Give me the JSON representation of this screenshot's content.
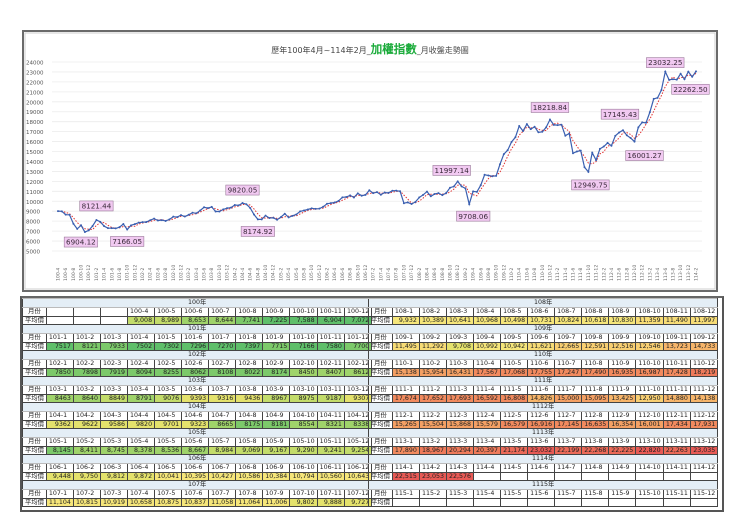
{
  "chart": {
    "title_prefix": "歷年100年4月~114年2月_",
    "title_highlight": "加權指數",
    "title_suffix": "_月收盤走勢圖",
    "highlight_color": "#1aab3a"
  },
  "chart_data": {
    "type": "line",
    "title": "歷年100年4月~114年2月_加權指數_月收盤走勢圖",
    "xlabel": "",
    "ylabel": "",
    "ylim": [
      5000,
      24000
    ],
    "yticks": [
      5000,
      6000,
      7000,
      8000,
      9000,
      10000,
      11000,
      12000,
      13000,
      14000,
      15000,
      16000,
      17000,
      18000,
      19000,
      20000,
      21000,
      22000,
      23000,
      24000
    ],
    "grid": true,
    "legend": "none",
    "x_tick_labels": [
      "100-4",
      "100-6",
      "100-8",
      "100-10",
      "100-12",
      "101-2",
      "101-4",
      "101-6",
      "101-8",
      "101-10",
      "101-12",
      "102-2",
      "102-4",
      "102-6",
      "102-8",
      "102-10",
      "102-12",
      "103-2",
      "103-4",
      "103-6",
      "103-8",
      "103-10",
      "103-12",
      "104-2",
      "104-4",
      "104-6",
      "104-8",
      "104-10",
      "104-12",
      "105-2",
      "105-4",
      "105-6",
      "105-8",
      "105-10",
      "105-12",
      "106-2",
      "106-4",
      "106-6",
      "106-8",
      "106-10",
      "106-12",
      "107-2",
      "107-4",
      "107-6",
      "107-8",
      "107-10",
      "107-12",
      "108-2",
      "108-4",
      "108-6",
      "108-8",
      "108-10",
      "108-12",
      "109-2",
      "109-4",
      "109-6",
      "109-8",
      "109-10",
      "109-12",
      "110-2",
      "110-4",
      "110-6",
      "110-8",
      "110-10",
      "110-12",
      "111-2",
      "111-4",
      "111-6",
      "111-8",
      "111-10",
      "111-12",
      "112-2",
      "112-4",
      "112-6",
      "112-8",
      "112-10",
      "112-12",
      "113-2",
      "113-4",
      "113-6",
      "113-8",
      "113-10",
      "113-12",
      "114-2"
    ],
    "series": [
      {
        "name": "月收盤",
        "color": "#3a5fb0",
        "style": "solid-with-markers"
      },
      {
        "name": "趨勢線",
        "color": "#e03030",
        "style": "dotted"
      }
    ],
    "annotations": [
      {
        "label": "8121.44",
        "x": "101-2",
        "value": 8121.44
      },
      {
        "label": "6904.12",
        "x": "100-11",
        "value": 6904.12
      },
      {
        "label": "7166.05",
        "x": "101-10",
        "value": 7166.05
      },
      {
        "label": "9820.05",
        "x": "104-4",
        "value": 9820.05
      },
      {
        "label": "8174.92",
        "x": "104-8",
        "value": 8174.92
      },
      {
        "label": "11997.14",
        "x": "108-12",
        "value": 11997.14
      },
      {
        "label": "9708.06",
        "x": "109-3",
        "value": 9708.06
      },
      {
        "label": "18218.84",
        "x": "110-12",
        "value": 18218.84
      },
      {
        "label": "12949.75",
        "x": "111-10",
        "value": 12949.75
      },
      {
        "label": "17145.43",
        "x": "112-7",
        "value": 17145.43
      },
      {
        "label": "16001.27",
        "x": "112-10",
        "value": 16001.27
      },
      {
        "label": "23032.25",
        "x": "113-6",
        "value": 23032.25
      },
      {
        "label": "22262.50",
        "x": "113-11",
        "value": 22262.5
      }
    ]
  },
  "table": {
    "month_label": "月份",
    "avg_label": "平均價",
    "left": [
      {
        "year": "100年",
        "months": [
          "",
          "",
          "",
          "100-4",
          "100-5",
          "100-6",
          "100-7",
          "100-8",
          "100-9",
          "100-10",
          "100-11",
          "100-12"
        ],
        "values": [
          "",
          "",
          "",
          "9,008",
          "8,989",
          "8,653",
          "8,644",
          "7,741",
          "7,225",
          "7,588",
          "6,904",
          "7,072"
        ]
      },
      {
        "year": "101年",
        "months": [
          "101-1",
          "101-2",
          "101-3",
          "101-4",
          "101-5",
          "101-6",
          "101-7",
          "101-8",
          "101-9",
          "101-10",
          "101-11",
          "101-12"
        ],
        "values": [
          "7517",
          "8121",
          "7933",
          "7502",
          "7302",
          "7296",
          "7270",
          "7397",
          "7715",
          "7166",
          "7580",
          "7700"
        ]
      },
      {
        "year": "102年",
        "months": [
          "102-1",
          "102-2",
          "102-3",
          "102-4",
          "102-5",
          "102-6",
          "102-7",
          "102-8",
          "102-9",
          "102-10",
          "102-11",
          "102-12"
        ],
        "values": [
          "7850",
          "7898",
          "7919",
          "8094",
          "8255",
          "8062",
          "8108",
          "8022",
          "8174",
          "8450",
          "8407",
          "8612"
        ]
      },
      {
        "year": "103年",
        "months": [
          "103-1",
          "103-2",
          "103-3",
          "103-4",
          "103-5",
          "103-6",
          "103-7",
          "103-8",
          "103-9",
          "103-10",
          "103-11",
          "103-12"
        ],
        "values": [
          "8463",
          "8640",
          "8849",
          "8791",
          "9076",
          "9393",
          "9316",
          "9436",
          "8967",
          "8975",
          "9187",
          "9307"
        ]
      },
      {
        "year": "104年",
        "months": [
          "104-1",
          "104-2",
          "104-3",
          "104-4",
          "104-5",
          "104-6",
          "104-7",
          "104-8",
          "104-9",
          "104-10",
          "104-11",
          "104-12"
        ],
        "values": [
          "9362",
          "9622",
          "9586",
          "9820",
          "9701",
          "9323",
          "8665",
          "8175",
          "8181",
          "8554",
          "8321",
          "8338"
        ]
      },
      {
        "year": "105年",
        "months": [
          "105-1",
          "105-2",
          "105-3",
          "105-4",
          "105-5",
          "105-6",
          "105-7",
          "105-8",
          "105-9",
          "105-10",
          "105-11",
          "105-12"
        ],
        "values": [
          "8,145",
          "8,411",
          "8,745",
          "8,378",
          "8,536",
          "8,667",
          "8,984",
          "9,069",
          "9,167",
          "9,290",
          "9,241",
          "9,254"
        ]
      },
      {
        "year": "106年",
        "months": [
          "106-1",
          "106-2",
          "106-3",
          "106-4",
          "106-5",
          "106-6",
          "106-7",
          "106-8",
          "106-9",
          "106-10",
          "106-11",
          "106-12"
        ],
        "values": [
          "9,448",
          "9,750",
          "9,812",
          "9,872",
          "10,041",
          "10,395",
          "10,427",
          "10,586",
          "10,384",
          "10,794",
          "10,560",
          "10,643"
        ]
      },
      {
        "year": "107年",
        "months": [
          "107-1",
          "107-2",
          "107-3",
          "107-4",
          "107-5",
          "107-6",
          "107-7",
          "107-8",
          "107-9",
          "107-10",
          "107-11",
          "107-12"
        ],
        "values": [
          "11,104",
          "10,815",
          "10,919",
          "10,658",
          "10,875",
          "10,837",
          "11,058",
          "11,064",
          "11,006",
          "9,802",
          "9,888",
          "9,727"
        ]
      }
    ],
    "right": [
      {
        "year": "108年",
        "months": [
          "108-1",
          "108-2",
          "108-3",
          "108-4",
          "108-5",
          "108-6",
          "108-7",
          "108-8",
          "108-9",
          "108-10",
          "108-11",
          "108-12"
        ],
        "values": [
          "9,932",
          "10,389",
          "10,641",
          "10,968",
          "10,498",
          "10,731",
          "10,824",
          "10,618",
          "10,830",
          "11,359",
          "11,490",
          "11,997"
        ]
      },
      {
        "year": "109年",
        "months": [
          "109-1",
          "109-2",
          "109-3",
          "109-4",
          "109-5",
          "109-6",
          "109-7",
          "109-8",
          "109-9",
          "109-10",
          "109-11",
          "109-12"
        ],
        "values": [
          "11,495",
          "11,292",
          "9,708",
          "10,992",
          "10,942",
          "11,621",
          "12,665",
          "12,591",
          "12,516",
          "12,546",
          "13,723",
          "14,733"
        ]
      },
      {
        "year": "110年",
        "months": [
          "110-1",
          "110-2",
          "110-3",
          "110-4",
          "110-5",
          "110-6",
          "110-7",
          "110-8",
          "110-9",
          "110-10",
          "110-11",
          "110-12"
        ],
        "values": [
          "15,138",
          "15,954",
          "16,431",
          "17,567",
          "17,068",
          "17,755",
          "17,247",
          "17,490",
          "16,935",
          "16,987",
          "17,428",
          "18,219"
        ]
      },
      {
        "year": "111年",
        "months": [
          "111-1",
          "111-2",
          "111-3",
          "111-4",
          "111-5",
          "111-6",
          "111-7",
          "111-8",
          "111-9",
          "111-10",
          "111-11",
          "111-12"
        ],
        "values": [
          "17,674",
          "17,652",
          "17,693",
          "16,592",
          "16,808",
          "14,826",
          "15,000",
          "15,095",
          "13,425",
          "12,950",
          "14,880",
          "14,138"
        ]
      },
      {
        "year": "1112年",
        "months": [
          "112-1",
          "112-2",
          "112-3",
          "112-4",
          "112-5",
          "112-6",
          "112-7",
          "112-8",
          "112-9",
          "112-10",
          "112-11",
          "112-12"
        ],
        "values": [
          "15,265",
          "15,504",
          "15,868",
          "15,579",
          "16,579",
          "16,916",
          "17,145",
          "16,635",
          "16,354",
          "16,001",
          "17,434",
          "17,931"
        ]
      },
      {
        "year": "1113年",
        "months": [
          "113-1",
          "113-2",
          "113-3",
          "113-4",
          "113-5",
          "113-6",
          "113-7",
          "113-8",
          "113-9",
          "113-10",
          "113-11",
          "113-12"
        ],
        "values": [
          "17,890",
          "18,967",
          "20,294",
          "20,397",
          "21,174",
          "23,032",
          "22,199",
          "22,268",
          "22,225",
          "22,820",
          "22,263",
          "23,035"
        ]
      },
      {
        "year": "1114年",
        "months": [
          "114-1",
          "114-2",
          "114-3",
          "114-4",
          "114-5",
          "114-6",
          "114-7",
          "114-8",
          "114-9",
          "114-10",
          "114-11",
          "114-12"
        ],
        "values": [
          "22,515",
          "23,053",
          "22,576",
          "",
          "",
          "",
          "",
          "",
          "",
          "",
          "",
          ""
        ]
      },
      {
        "year": "1115年",
        "months": [
          "115-1",
          "115-2",
          "115-3",
          "115-4",
          "115-5",
          "115-6",
          "115-7",
          "115-8",
          "115-9",
          "115-10",
          "115-11",
          "115-12"
        ],
        "values": [
          "",
          "",
          "",
          "",
          "",
          "",
          "",
          "",
          "",
          "",
          "",
          ""
        ]
      }
    ]
  }
}
